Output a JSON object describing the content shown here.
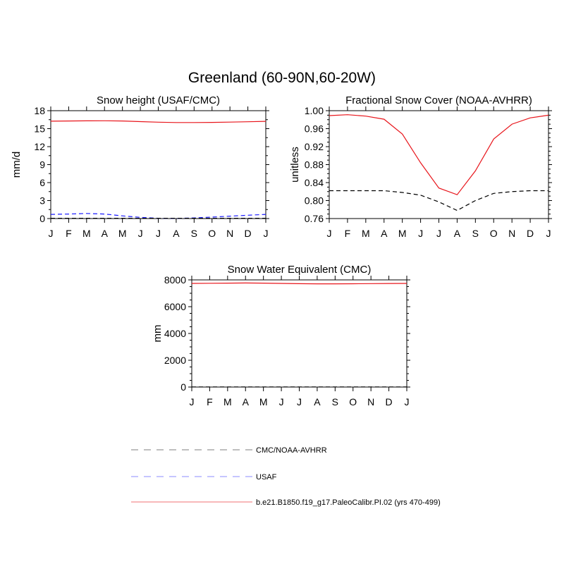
{
  "figure": {
    "title": "Greenland (60-90N,60-20W)"
  },
  "months": [
    "J",
    "F",
    "M",
    "A",
    "M",
    "J",
    "J",
    "A",
    "S",
    "O",
    "N",
    "D",
    "J"
  ],
  "colors": {
    "model": "#e8151b",
    "cmc": "#000000",
    "usaf": "#1a1aff"
  },
  "chart_data": [
    {
      "type": "line",
      "title": "Snow height (USAF/CMC)",
      "ylabel": "mm/d",
      "xlabel": "",
      "x": [
        "J",
        "F",
        "M",
        "A",
        "M",
        "J",
        "J",
        "A",
        "S",
        "O",
        "N",
        "D",
        "J"
      ],
      "ylim": [
        0,
        18
      ],
      "yticks": [
        "0",
        "3",
        "6",
        "9",
        "12",
        "15",
        "18"
      ],
      "grid": false,
      "series": [
        {
          "name": "b.e21.B1850.f19_g17.PaleoCalibr.PI.02 (yrs 470-499)",
          "style": "solid",
          "color": "#e8151b",
          "values": [
            16.25,
            16.28,
            16.3,
            16.32,
            16.28,
            16.18,
            16.08,
            16.02,
            16.02,
            16.05,
            16.1,
            16.15,
            16.22
          ]
        },
        {
          "name": "USAF",
          "style": "dashed",
          "color": "#1a1aff",
          "values": [
            0.7,
            0.75,
            0.85,
            0.75,
            0.45,
            0.2,
            0.05,
            0.02,
            0.1,
            0.25,
            0.4,
            0.55,
            0.7
          ]
        },
        {
          "name": "CMC/NOAA-AVHRR",
          "style": "dashed",
          "color": "#000000",
          "values": [
            0.05,
            0.05,
            0.05,
            0.05,
            0.05,
            0.05,
            0.05,
            0.05,
            0.05,
            0.05,
            0.05,
            0.05,
            0.05
          ]
        }
      ]
    },
    {
      "type": "line",
      "title": "Fractional Snow Cover (NOAA-AVHRR)",
      "ylabel": "unitless",
      "xlabel": "",
      "x": [
        "J",
        "F",
        "M",
        "A",
        "M",
        "J",
        "J",
        "A",
        "S",
        "O",
        "N",
        "D",
        "J"
      ],
      "ylim": [
        0.76,
        1.0
      ],
      "yticks": [
        "0.76",
        "0.80",
        "0.84",
        "0.88",
        "0.92",
        "0.96",
        "1.00"
      ],
      "grid": false,
      "series": [
        {
          "name": "b.e21.B1850.f19_g17.PaleoCalibr.PI.02 (yrs 470-499)",
          "style": "solid",
          "color": "#e8151b",
          "values": [
            0.989,
            0.991,
            0.988,
            0.981,
            0.948,
            0.884,
            0.828,
            0.813,
            0.866,
            0.937,
            0.97,
            0.984,
            0.99
          ]
        },
        {
          "name": "CMC/NOAA-AVHRR",
          "style": "dashed",
          "color": "#000000",
          "values": [
            0.822,
            0.822,
            0.822,
            0.822,
            0.818,
            0.812,
            0.797,
            0.778,
            0.8,
            0.816,
            0.82,
            0.822,
            0.822
          ]
        }
      ]
    },
    {
      "type": "line",
      "title": "Snow Water Equivalent (CMC)",
      "ylabel": "mm",
      "xlabel": "",
      "x": [
        "J",
        "F",
        "M",
        "A",
        "M",
        "J",
        "J",
        "A",
        "S",
        "O",
        "N",
        "D",
        "J"
      ],
      "ylim": [
        0,
        8200
      ],
      "yticks": [
        "0",
        "2000",
        "4000",
        "6000",
        "8000"
      ],
      "grid": false,
      "series": [
        {
          "name": "b.e21.B1850.f19_g17.PaleoCalibr.PI.02 (yrs 470-499)",
          "style": "solid",
          "color": "#e8151b",
          "values": [
            7930,
            7940,
            7950,
            7960,
            7950,
            7930,
            7910,
            7900,
            7900,
            7905,
            7915,
            7925,
            7930
          ]
        },
        {
          "name": "CMC/NOAA-AVHRR",
          "style": "dashed",
          "color": "#000000",
          "values": [
            5,
            5,
            5,
            5,
            5,
            5,
            5,
            5,
            5,
            5,
            5,
            5,
            5
          ]
        }
      ]
    }
  ],
  "legend": {
    "placement": "bottom-center",
    "entries": [
      {
        "label": "CMC/NOAA-AVHRR",
        "style": "dashed",
        "color": "#000000"
      },
      {
        "label": "USAF",
        "style": "dashed",
        "color": "#1a1aff"
      },
      {
        "label": "b.e21.B1850.f19_g17.PaleoCalibr.PI.02 (yrs 470-499)",
        "style": "solid",
        "color": "#e8151b"
      }
    ]
  }
}
